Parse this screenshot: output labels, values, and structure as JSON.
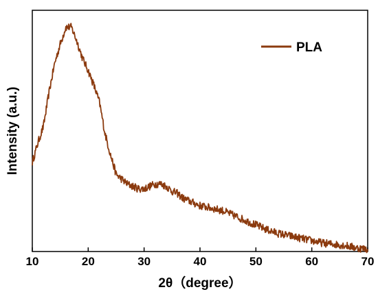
{
  "chart_data": {
    "type": "line",
    "xlabel": "2θ（degree）",
    "ylabel": "Intensity (a.u.)",
    "xlim": [
      10,
      70
    ],
    "ylim": [
      0,
      100
    ],
    "xticks": [
      "10",
      "20",
      "30",
      "40",
      "50",
      "60",
      "70"
    ],
    "y_tick_labels": false,
    "grid": false,
    "legend": {
      "position": "top-right"
    },
    "series": [
      {
        "name": "PLA",
        "color": "#8B3A0E",
        "x": [
          10,
          11,
          12,
          13,
          14,
          15,
          16,
          17,
          18,
          19,
          20,
          21,
          22,
          23,
          24,
          25,
          26,
          27,
          28,
          29,
          30,
          31,
          32,
          33,
          34,
          35,
          36,
          37,
          38,
          39,
          40,
          42,
          44,
          46,
          48,
          50,
          52,
          54,
          56,
          58,
          60,
          62,
          64,
          66,
          68,
          70
        ],
        "y": [
          37,
          45,
          52,
          66,
          78,
          86,
          93,
          93,
          87,
          80,
          75,
          69,
          62,
          49,
          40,
          32,
          30,
          28,
          27,
          26,
          26,
          27,
          28,
          28,
          27,
          25,
          24,
          22,
          21,
          20,
          19,
          18,
          17,
          15,
          13,
          11,
          9,
          7.5,
          6.5,
          5.5,
          4.5,
          3.5,
          3,
          2.5,
          1.5,
          1
        ]
      }
    ]
  }
}
